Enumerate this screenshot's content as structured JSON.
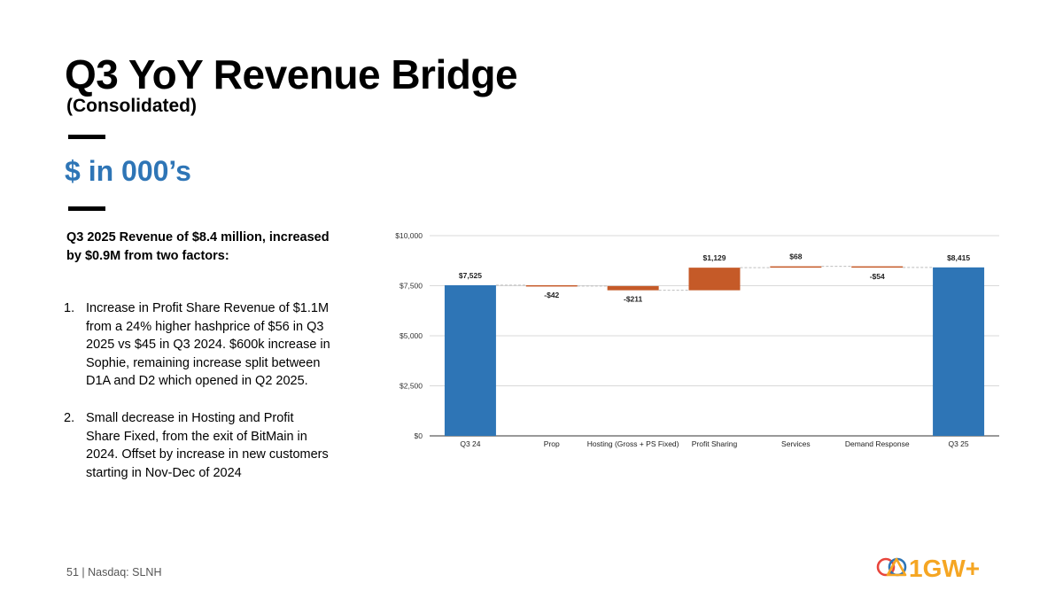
{
  "slide": {
    "title": "Q3 YoY Revenue Bridge",
    "subtitle": "(Consolidated)",
    "units": "$ in 000’s",
    "lead": "Q3 2025 Revenue of $8.4 million, increased by $0.9M from two factors:",
    "factors": [
      {
        "num": "1.",
        "text": "Increase in Profit Share Revenue of $1.1M from a 24% higher hashprice of $56 in Q3 2025 vs $45 in Q3 2024. $600k increase in Sophie, remaining increase split between D1A and D2 which opened in Q2 2025."
      },
      {
        "num": "2.",
        "text": "Small decrease in Hosting and Profit Share Fixed, from the exit of BitMain in 2024. Offset by increase in new customers starting in Nov-Dec of 2024"
      }
    ],
    "footer": "51  |  Nasdaq: SLNH",
    "logo_text": "1GW+"
  },
  "colors": {
    "total": "#2e75b6",
    "change": "#c55a28",
    "units_text": "#2e75b6",
    "logo_blue": "#2e75b6",
    "logo_orange": "#f5a623",
    "logo_red": "#e8453c"
  },
  "chart_data": {
    "type": "bar",
    "subtype": "waterfall",
    "categories": [
      "Q3 24",
      "Prop",
      "Hosting (Gross + PS Fixed)",
      "Profit Sharing",
      "Services",
      "Demand Response",
      "Q3 25"
    ],
    "values": [
      7525,
      -42,
      -211,
      1129,
      68,
      -54,
      8415
    ],
    "kinds": [
      "total",
      "delta",
      "delta",
      "delta",
      "delta",
      "delta",
      "total"
    ],
    "data_labels": [
      "$7,525",
      "-$42",
      "-$211",
      "$1,129",
      "$68",
      "-$54",
      "$8,415"
    ],
    "ylim": [
      0,
      10000
    ],
    "yticks": [
      0,
      2500,
      5000,
      7500,
      10000
    ],
    "ytick_labels": [
      "$0",
      "$2,500",
      "$5,000",
      "$7,500",
      "$10,000"
    ],
    "grid": true,
    "connectors": true
  }
}
